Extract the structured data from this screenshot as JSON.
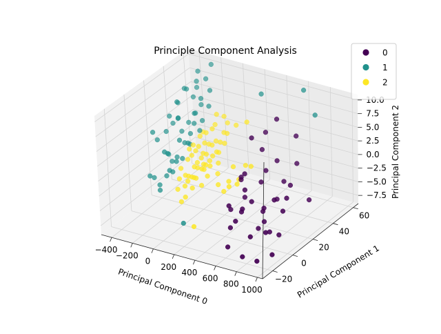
{
  "chart_data": {
    "type": "scatter",
    "projection": "3d",
    "title": "Principle Component Analysis",
    "xlabel": "Principal Component 0",
    "ylabel": "Principal Component 1",
    "zlabel": "Principal Component 2",
    "xlim": [
      -500,
      1050
    ],
    "ylim": [
      -30,
      65
    ],
    "zlim": [
      -9,
      11
    ],
    "xticks": [
      -400,
      -200,
      0,
      200,
      400,
      600,
      800,
      1000
    ],
    "yticks": [
      -20,
      0,
      20,
      40,
      60
    ],
    "zticks": [
      -7.5,
      -5.0,
      -2.5,
      0.0,
      2.5,
      5.0,
      7.5,
      10.0
    ],
    "xtick_labels": [
      "−400",
      "−200",
      "0",
      "200",
      "400",
      "600",
      "800",
      "1000"
    ],
    "ytick_labels": [
      "−20",
      "0",
      "20",
      "40",
      "60"
    ],
    "ztick_labels": [
      "−7.5",
      "−5.0",
      "−2.5",
      "0.0",
      "2.5",
      "5.0",
      "7.5",
      "10.0"
    ],
    "grid": true,
    "legend_position": "top-right",
    "colors": {
      "0": "#440154",
      "1": "#21918c",
      "2": "#fde725"
    },
    "series": [
      {
        "name": "0",
        "color": "#440154",
        "points": [
          [
            720,
            0,
            -6
          ],
          [
            600,
            -10,
            -4
          ],
          [
            820,
            10,
            -8
          ],
          [
            500,
            10,
            -3
          ],
          [
            900,
            -5,
            -9
          ],
          [
            550,
            5,
            2
          ],
          [
            480,
            20,
            6
          ],
          [
            760,
            -20,
            -8
          ],
          [
            680,
            30,
            -2
          ],
          [
            420,
            15,
            -1
          ],
          [
            650,
            12,
            -5
          ],
          [
            700,
            8,
            -6
          ],
          [
            610,
            -5,
            -3
          ],
          [
            560,
            25,
            0
          ],
          [
            800,
            20,
            -3
          ],
          [
            740,
            -10,
            -6
          ],
          [
            530,
            40,
            7
          ],
          [
            460,
            0,
            -4
          ],
          [
            580,
            18,
            -1
          ],
          [
            870,
            35,
            -5
          ],
          [
            640,
            2,
            -2
          ],
          [
            690,
            22,
            -4
          ],
          [
            520,
            -8,
            -2
          ],
          [
            780,
            5,
            -7
          ],
          [
            600,
            32,
            1
          ],
          [
            450,
            12,
            0
          ],
          [
            730,
            15,
            -3
          ],
          [
            810,
            -2,
            -6
          ],
          [
            570,
            -12,
            -5
          ],
          [
            660,
            45,
            4
          ],
          [
            500,
            28,
            3
          ],
          [
            840,
            12,
            -4
          ],
          [
            620,
            -20,
            -7
          ],
          [
            710,
            40,
            0
          ],
          [
            540,
            6,
            -1
          ],
          [
            760,
            28,
            -2
          ],
          [
            470,
            35,
            5
          ],
          [
            590,
            -2,
            -3
          ],
          [
            680,
            10,
            -4
          ],
          [
            850,
            -15,
            -9
          ]
        ]
      },
      {
        "name": "1",
        "color": "#21918c",
        "points": [
          [
            -200,
            20,
            6
          ],
          [
            -300,
            40,
            8
          ],
          [
            -150,
            30,
            4
          ],
          [
            -250,
            25,
            5
          ],
          [
            -350,
            10,
            4
          ],
          [
            -100,
            40,
            6
          ],
          [
            -200,
            5,
            2
          ],
          [
            -300,
            30,
            7
          ],
          [
            -150,
            15,
            3
          ],
          [
            -250,
            45,
            9
          ],
          [
            -320,
            20,
            3
          ],
          [
            -180,
            35,
            5
          ],
          [
            -220,
            10,
            1
          ],
          [
            -280,
            50,
            10
          ],
          [
            -120,
            20,
            2
          ],
          [
            -260,
            15,
            0
          ],
          [
            -340,
            35,
            6
          ],
          [
            -160,
            5,
            -1
          ],
          [
            -240,
            40,
            4
          ],
          [
            -300,
            0,
            -2
          ],
          [
            -200,
            25,
            1
          ],
          [
            -130,
            45,
            8
          ],
          [
            -270,
            30,
            2
          ],
          [
            -210,
            50,
            9
          ],
          [
            -330,
            25,
            5
          ],
          [
            -180,
            10,
            -2
          ],
          [
            -290,
            45,
            6
          ],
          [
            -100,
            30,
            3
          ],
          [
            -230,
            20,
            -1
          ],
          [
            -310,
            5,
            -3
          ],
          [
            -170,
            40,
            7
          ],
          [
            -250,
            35,
            3
          ],
          [
            -140,
            10,
            0
          ],
          [
            -360,
            15,
            2
          ],
          [
            -200,
            55,
            11
          ],
          [
            300,
            50,
            9
          ],
          [
            600,
            60,
            10
          ],
          [
            200,
            -20,
            -5
          ],
          [
            -260,
            5,
            -4
          ],
          [
            -190,
            30,
            2
          ],
          [
            -320,
            40,
            8
          ],
          [
            -150,
            25,
            1
          ],
          [
            -280,
            20,
            -2
          ],
          [
            -220,
            45,
            5
          ],
          [
            -120,
            35,
            4
          ],
          [
            -300,
            50,
            7
          ],
          [
            -240,
            10,
            -3
          ],
          [
            -180,
            20,
            -1
          ],
          [
            -350,
            30,
            3
          ],
          [
            -210,
            0,
            -4
          ],
          [
            700,
            60,
            6
          ]
        ]
      },
      {
        "name": "2",
        "color": "#fde725",
        "points": [
          [
            -50,
            20,
            1
          ],
          [
            0,
            25,
            0
          ],
          [
            50,
            15,
            -1
          ],
          [
            -100,
            30,
            2
          ],
          [
            20,
            10,
            -2
          ],
          [
            -30,
            35,
            3
          ],
          [
            80,
            20,
            -1
          ],
          [
            -80,
            15,
            0
          ],
          [
            10,
            30,
            1
          ],
          [
            60,
            25,
            0
          ],
          [
            -60,
            10,
            -2
          ],
          [
            30,
            40,
            2
          ],
          [
            -20,
            5,
            -3
          ],
          [
            100,
            15,
            -2
          ],
          [
            -120,
            25,
            1
          ],
          [
            40,
            35,
            1
          ],
          [
            -40,
            20,
            -1
          ],
          [
            0,
            10,
            -2
          ],
          [
            70,
            30,
            0
          ],
          [
            -90,
            35,
            2
          ],
          [
            20,
            20,
            -1
          ],
          [
            -10,
            45,
            4
          ],
          [
            90,
            10,
            -3
          ],
          [
            -70,
            5,
            -2
          ],
          [
            50,
            5,
            -3
          ],
          [
            -30,
            25,
            0
          ],
          [
            10,
            15,
            -1
          ],
          [
            -110,
            20,
            1
          ],
          [
            60,
            40,
            2
          ],
          [
            -50,
            40,
            3
          ],
          [
            30,
            0,
            -4
          ],
          [
            0,
            35,
            1
          ],
          [
            -20,
            15,
            -1
          ],
          [
            80,
            35,
            1
          ],
          [
            -60,
            30,
            1
          ],
          [
            40,
            10,
            -2
          ],
          [
            -100,
            10,
            -1
          ],
          [
            20,
            45,
            3
          ],
          [
            -40,
            0,
            -3
          ],
          [
            110,
            25,
            -1
          ],
          [
            -80,
            45,
            4
          ],
          [
            0,
            20,
            0
          ],
          [
            50,
            30,
            0
          ],
          [
            -30,
            10,
            -2
          ],
          [
            150,
            20,
            -2
          ],
          [
            200,
            15,
            -3
          ],
          [
            250,
            40,
            5
          ],
          [
            -10,
            0,
            -5
          ],
          [
            300,
            20,
            0
          ],
          [
            350,
            10,
            -1
          ],
          [
            250,
            -15,
            -6
          ],
          [
            30,
            25,
            -1
          ],
          [
            -70,
            25,
            1
          ],
          [
            70,
            15,
            -1
          ],
          [
            -120,
            35,
            2
          ],
          [
            10,
            5,
            -2
          ],
          [
            100,
            45,
            3
          ],
          [
            -90,
            20,
            0
          ],
          [
            40,
            20,
            -1
          ],
          [
            -20,
            30,
            1
          ],
          [
            400,
            5,
            -1
          ],
          [
            350,
            20,
            -2
          ],
          [
            320,
            30,
            -1
          ],
          [
            380,
            15,
            -2
          ],
          [
            420,
            25,
            0
          ],
          [
            300,
            10,
            -3
          ]
        ]
      }
    ]
  }
}
